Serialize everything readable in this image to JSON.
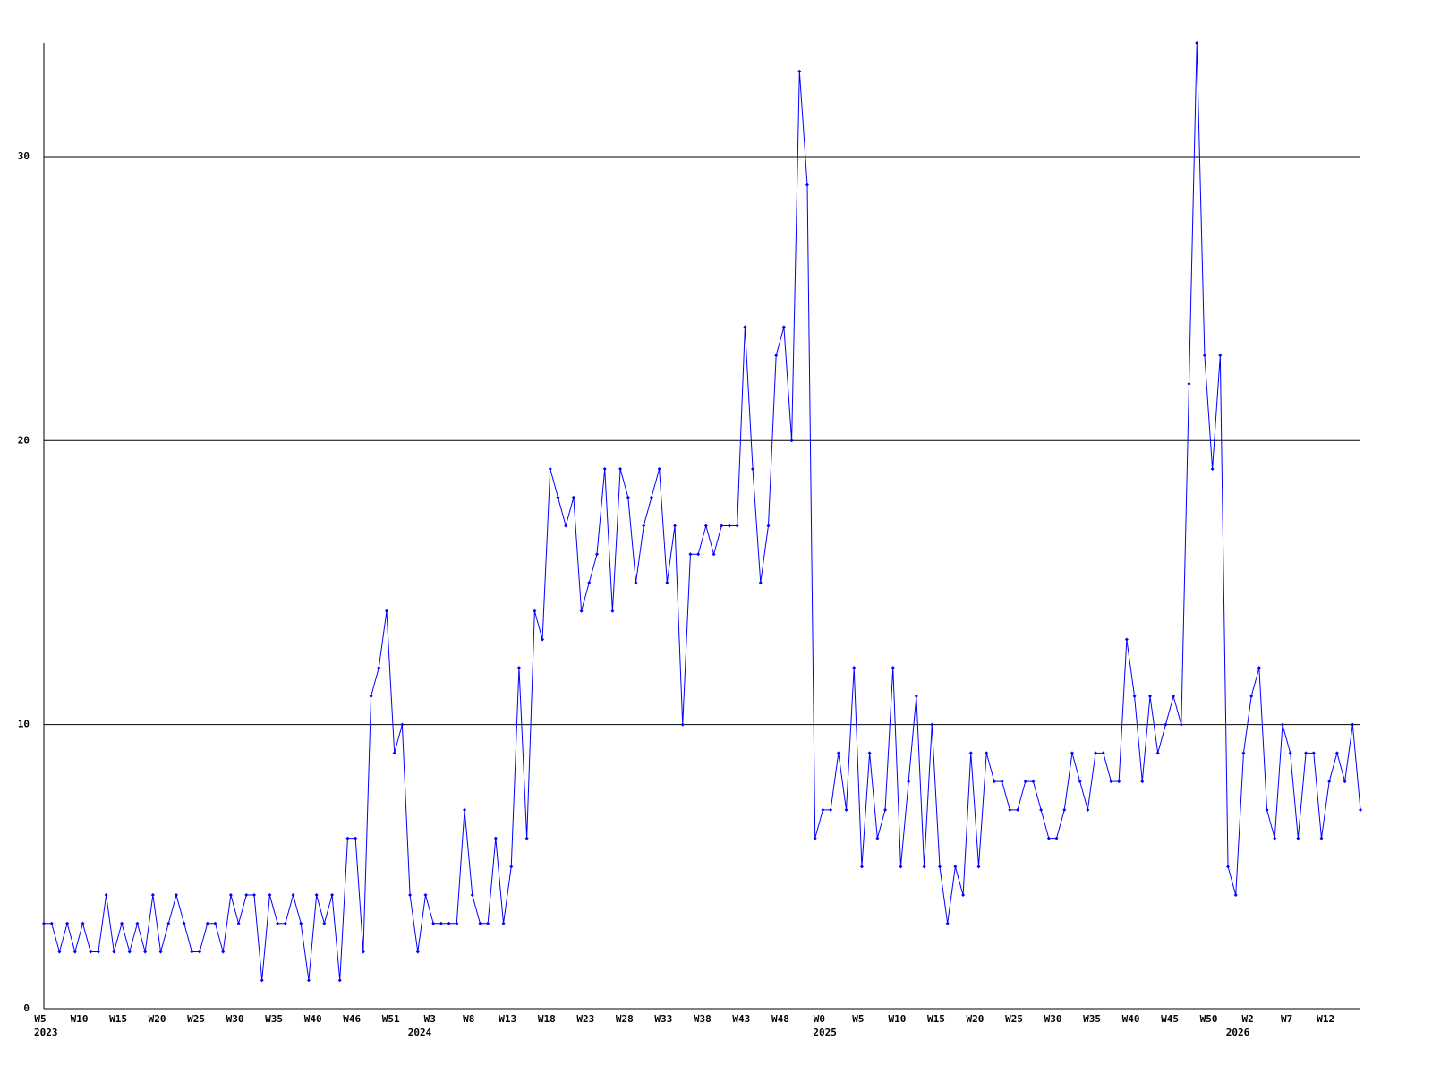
{
  "chart_data": {
    "type": "line",
    "color": "#0000ff",
    "grid": true,
    "ylim": [
      0,
      34
    ],
    "yticks": [
      0,
      10,
      20,
      30
    ],
    "categories": [
      "W5",
      null,
      null,
      null,
      null,
      "W10",
      null,
      null,
      null,
      null,
      "W15",
      null,
      null,
      null,
      null,
      "W20",
      null,
      null,
      null,
      null,
      "W25",
      null,
      null,
      null,
      null,
      "W30",
      null,
      null,
      null,
      null,
      "W35",
      null,
      null,
      null,
      null,
      "W40",
      null,
      null,
      null,
      null,
      "W46",
      null,
      null,
      null,
      null,
      "W51",
      null,
      null,
      null,
      null,
      "W3",
      null,
      null,
      null,
      null,
      "W8",
      null,
      null,
      null,
      null,
      "W13",
      null,
      null,
      null,
      null,
      "W18",
      null,
      null,
      null,
      null,
      "W23",
      null,
      null,
      null,
      null,
      "W28",
      null,
      null,
      null,
      null,
      "W33",
      null,
      null,
      null,
      null,
      "W38",
      null,
      null,
      null,
      null,
      "W43",
      null,
      null,
      null,
      null,
      "W48",
      null,
      null,
      null,
      null,
      "W0",
      null,
      null,
      null,
      null,
      "W5",
      null,
      null,
      null,
      null,
      "W10",
      null,
      null,
      null,
      null,
      "W15",
      null,
      null,
      null,
      null,
      "W20",
      null,
      null,
      null,
      null,
      "W25",
      null,
      null,
      null,
      null,
      "W30",
      null,
      null,
      null,
      null,
      "W35",
      null,
      null,
      null,
      null,
      "W40",
      null,
      null,
      null,
      null,
      "W45",
      null,
      null,
      null,
      null,
      "W50",
      null,
      null,
      null,
      null,
      "W2",
      null,
      null,
      null,
      null,
      "W7",
      null,
      null,
      null,
      null,
      "W12",
      null,
      null,
      null,
      null
    ],
    "years": [
      "2023",
      null,
      null,
      null,
      null,
      null,
      null,
      null,
      null,
      null,
      null,
      null,
      null,
      null,
      null,
      null,
      null,
      null,
      null,
      null,
      null,
      null,
      null,
      null,
      null,
      null,
      null,
      null,
      null,
      null,
      null,
      null,
      null,
      null,
      null,
      null,
      null,
      null,
      null,
      null,
      null,
      null,
      null,
      null,
      null,
      null,
      null,
      null,
      "2024",
      null,
      null,
      null,
      null,
      null,
      null,
      null,
      null,
      null,
      null,
      null,
      null,
      null,
      null,
      null,
      null,
      null,
      null,
      null,
      null,
      null,
      null,
      null,
      null,
      null,
      null,
      null,
      null,
      null,
      null,
      null,
      null,
      null,
      null,
      null,
      null,
      null,
      null,
      null,
      null,
      null,
      null,
      null,
      null,
      null,
      null,
      null,
      null,
      null,
      null,
      null,
      "2025",
      null,
      null,
      null,
      null,
      null,
      null,
      null,
      null,
      null,
      null,
      null,
      null,
      null,
      null,
      null,
      null,
      null,
      null,
      null,
      null,
      null,
      null,
      null,
      null,
      null,
      null,
      null,
      null,
      null,
      null,
      null,
      null,
      null,
      null,
      null,
      null,
      null,
      null,
      null,
      null,
      null,
      null,
      null,
      null,
      null,
      null,
      null,
      null,
      null,
      null,
      null,
      null,
      "2026",
      null,
      null,
      null,
      null,
      null,
      null,
      null,
      null,
      null,
      null,
      null,
      null,
      null,
      null,
      null,
      null
    ],
    "values": [
      3,
      3,
      2,
      3,
      2,
      3,
      2,
      2,
      4,
      2,
      3,
      2,
      3,
      2,
      4,
      2,
      3,
      4,
      3,
      2,
      2,
      3,
      3,
      2,
      4,
      3,
      4,
      4,
      1,
      4,
      3,
      3,
      4,
      3,
      1,
      4,
      3,
      4,
      1,
      6,
      6,
      2,
      11,
      12,
      14,
      9,
      10,
      4,
      2,
      4,
      3,
      3,
      3,
      3,
      7,
      4,
      3,
      3,
      6,
      3,
      5,
      12,
      6,
      14,
      13,
      19,
      18,
      17,
      18,
      14,
      15,
      16,
      19,
      14,
      19,
      18,
      15,
      17,
      18,
      19,
      15,
      17,
      10,
      16,
      16,
      17,
      16,
      17,
      17,
      17,
      24,
      19,
      15,
      17,
      23,
      24,
      20,
      33,
      29,
      6,
      7,
      7,
      9,
      7,
      12,
      5,
      9,
      6,
      7,
      12,
      5,
      8,
      11,
      5,
      10,
      5,
      3,
      5,
      4,
      9,
      5,
      9,
      8,
      8,
      7,
      7,
      8,
      8,
      7,
      6,
      6,
      7,
      9,
      8,
      7,
      9,
      9,
      8,
      8,
      13,
      11,
      8,
      11,
      9,
      10,
      11,
      10,
      22,
      34,
      23,
      19,
      23,
      5,
      4,
      9,
      11,
      12,
      7,
      6,
      10,
      9,
      6,
      9,
      9,
      6,
      8,
      9,
      8,
      10,
      7
    ]
  }
}
